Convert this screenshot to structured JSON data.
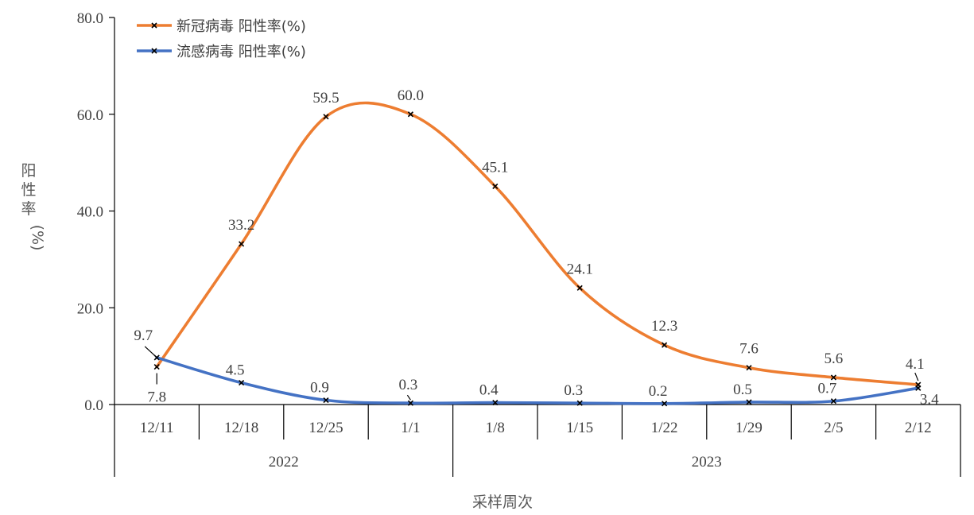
{
  "chart_data": {
    "type": "line",
    "categories": [
      "12/11",
      "12/18",
      "12/25",
      "1/1",
      "1/8",
      "1/15",
      "1/22",
      "1/29",
      "2/5",
      "2/12"
    ],
    "groups": [
      {
        "label": "2022",
        "categories": [
          "12/11",
          "12/18",
          "12/25",
          "1/1"
        ]
      },
      {
        "label": "2023",
        "categories": [
          "1/8",
          "1/15",
          "1/22",
          "1/29",
          "2/5",
          "2/12"
        ]
      }
    ],
    "series": [
      {
        "name": "新冠病毒 阳性率(%)",
        "color": "#ED7D31",
        "values": [
          7.8,
          33.2,
          59.5,
          60.0,
          45.1,
          24.1,
          12.3,
          7.6,
          5.6,
          4.1
        ],
        "labels": [
          "7.8",
          "33.2",
          "59.5",
          "60.0",
          "45.1",
          "24.1",
          "12.3",
          "7.6",
          "5.6",
          "4.1"
        ]
      },
      {
        "name": "流感病毒 阳性率(%)",
        "color": "#4472C4",
        "values": [
          9.7,
          4.5,
          0.9,
          0.3,
          0.4,
          0.3,
          0.2,
          0.5,
          0.7,
          3.4
        ],
        "labels": [
          "9.7",
          "4.5",
          "0.9",
          "0.3",
          "0.4",
          "0.3",
          "0.2",
          "0.5",
          "0.7",
          "3.4"
        ]
      }
    ],
    "ylabel": "阳性率(%)",
    "xlabel": "采样周次",
    "ylim": [
      0,
      80
    ],
    "yticks": [
      "0.0",
      "20.0",
      "40.0",
      "60.0",
      "80.0"
    ],
    "ytick_values": [
      0,
      20,
      40,
      60,
      80
    ],
    "legend_position": "top-left",
    "grid": false,
    "marker": "x",
    "smooth": true
  }
}
